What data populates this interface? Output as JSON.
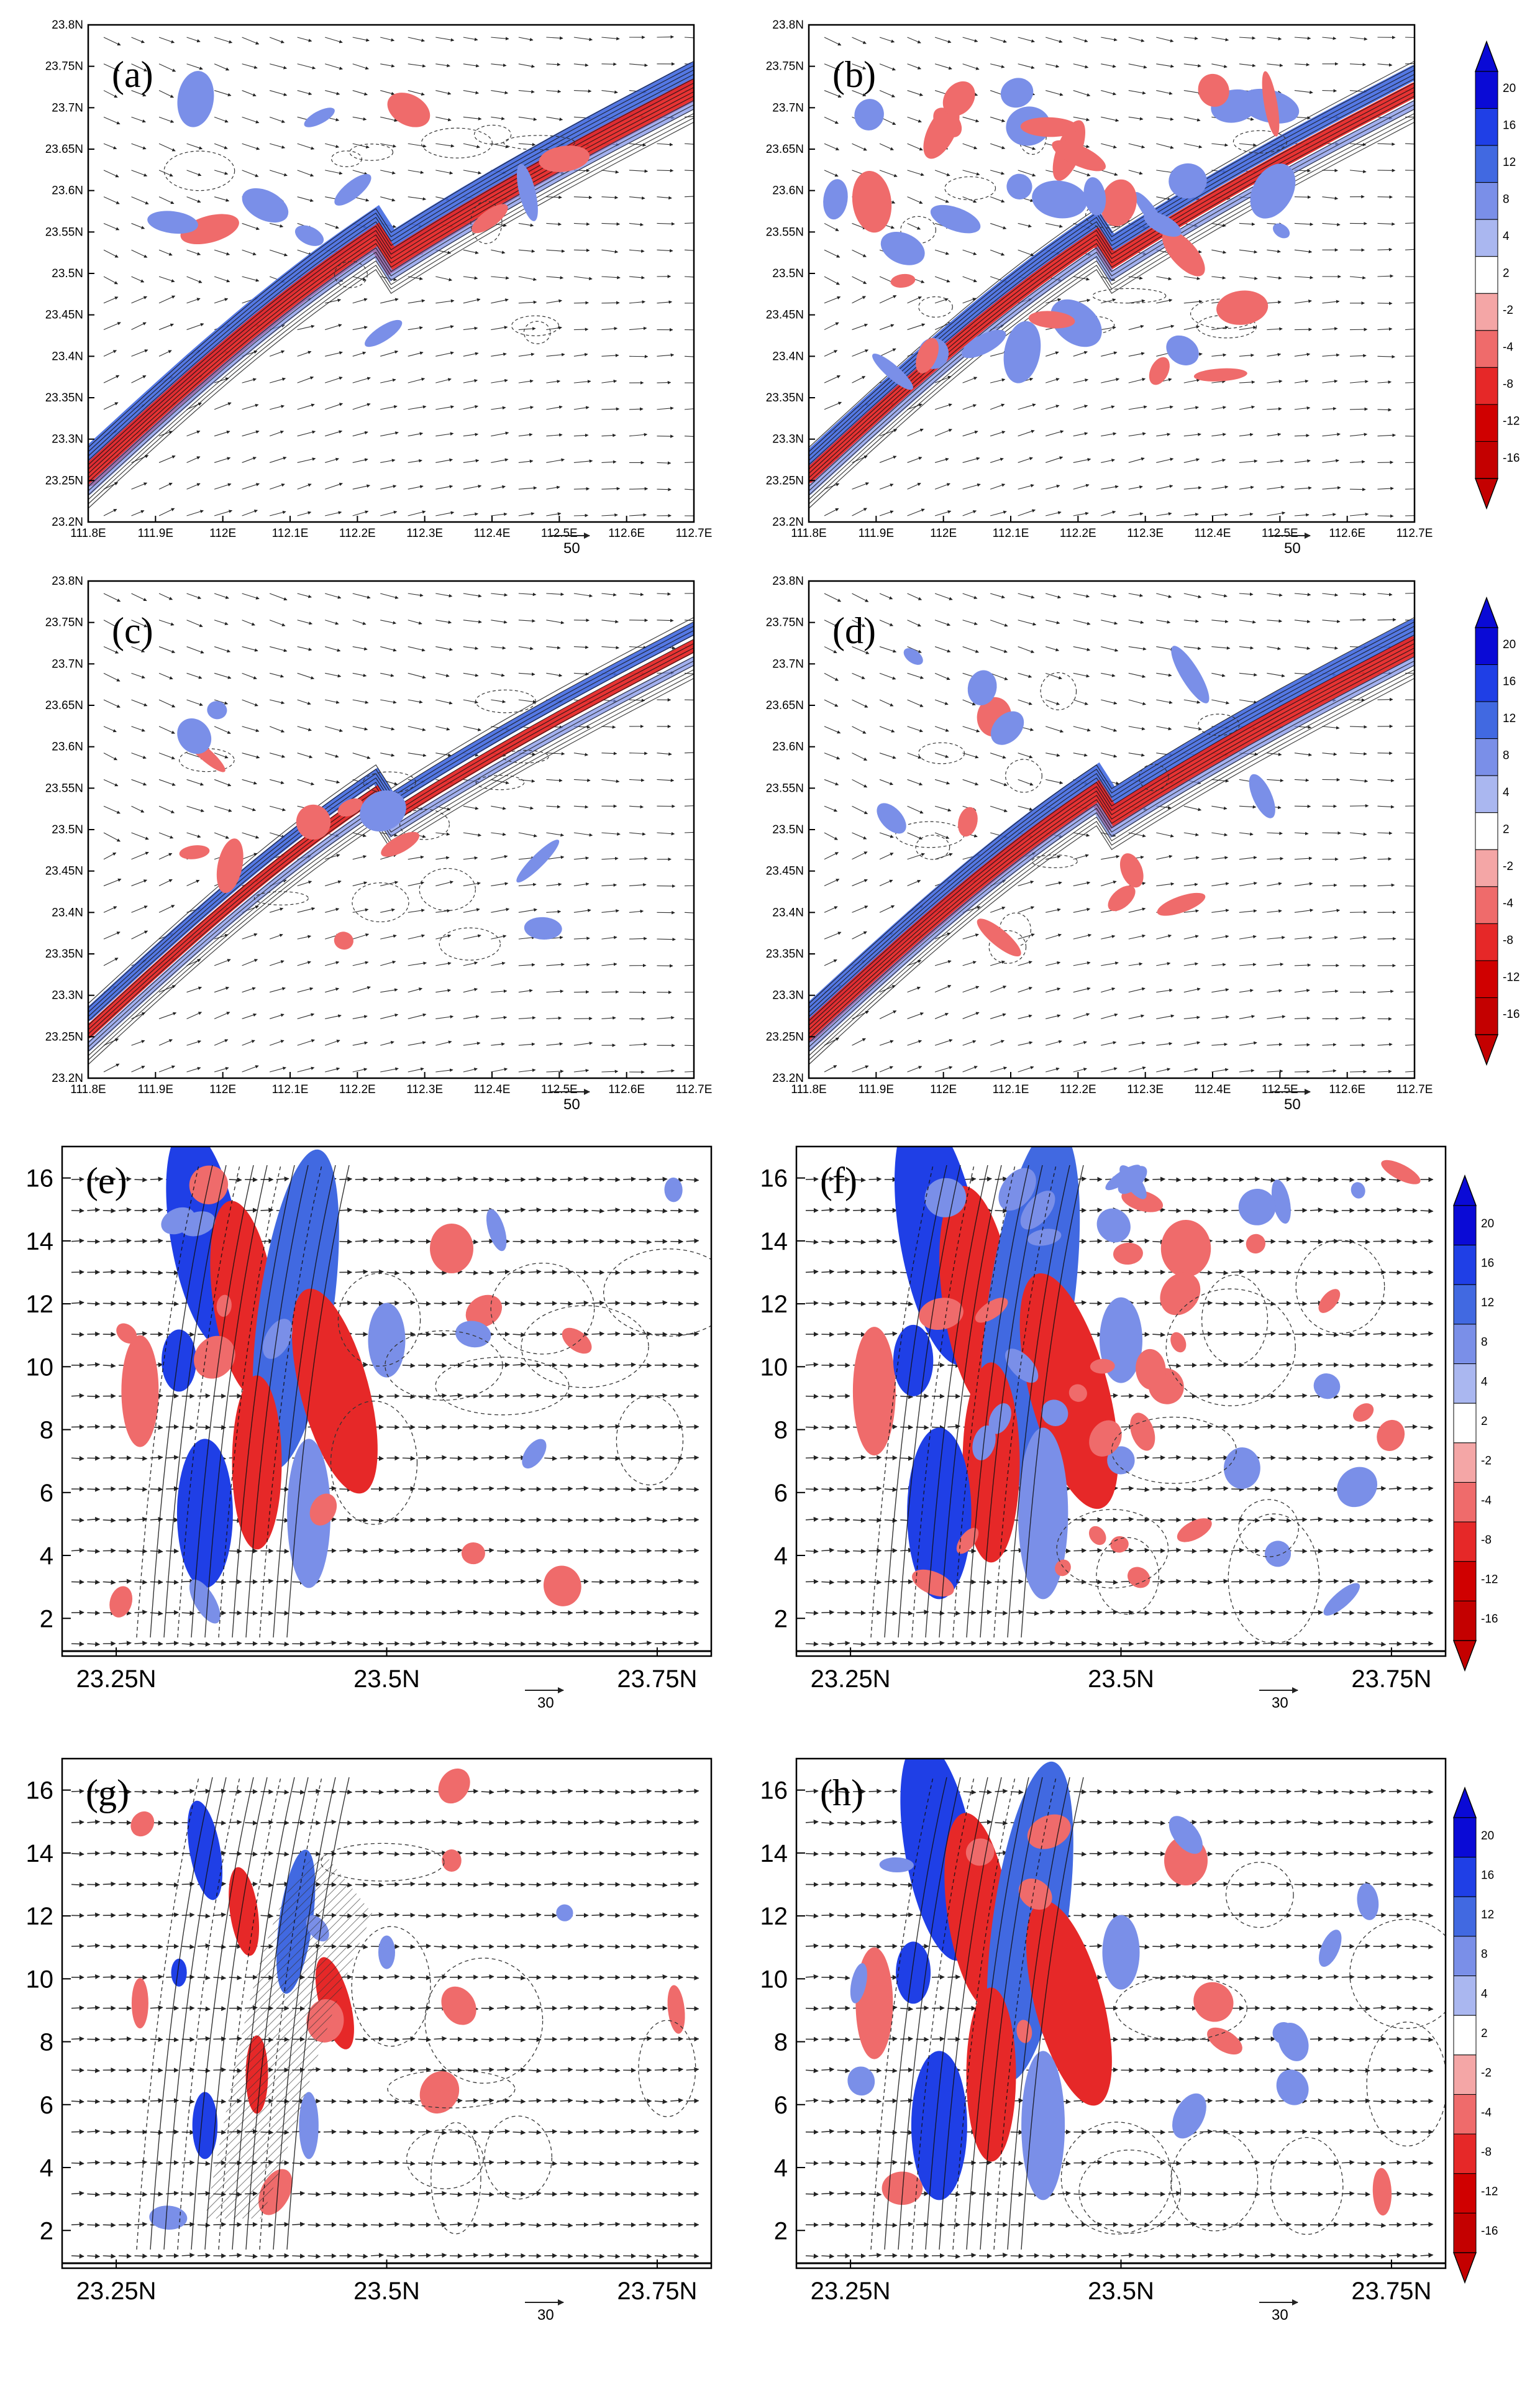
{
  "chart_data": [
    {
      "type": "heatmap",
      "panel": "(a)",
      "x_tick_labels": [
        "111.8E",
        "111.9E",
        "112E",
        "112.1E",
        "112.2E",
        "112.3E",
        "112.4E",
        "112.5E",
        "112.6E",
        "112.7E"
      ],
      "y_tick_labels": [
        "23.2N",
        "23.25N",
        "23.3N",
        "23.35N",
        "23.4N",
        "23.45N",
        "23.5N",
        "23.55N",
        "23.6N",
        "23.65N",
        "23.7N",
        "23.75N",
        "23.8N"
      ],
      "xlim": [
        111.8,
        112.7
      ],
      "ylim": [
        23.2,
        23.8
      ],
      "vector_reference": "50",
      "colorbar_levels": [
        20,
        16,
        12,
        8,
        4,
        2,
        -2,
        -4,
        -8,
        -12,
        -16
      ]
    },
    {
      "type": "heatmap",
      "panel": "(b)",
      "x_tick_labels": [
        "111.8E",
        "111.9E",
        "112E",
        "112.1E",
        "112.2E",
        "112.3E",
        "112.4E",
        "112.5E",
        "112.6E",
        "112.7E"
      ],
      "y_tick_labels": [
        "23.2N",
        "23.25N",
        "23.3N",
        "23.35N",
        "23.4N",
        "23.45N",
        "23.5N",
        "23.55N",
        "23.6N",
        "23.65N",
        "23.7N",
        "23.75N",
        "23.8N"
      ],
      "xlim": [
        111.8,
        112.7
      ],
      "ylim": [
        23.2,
        23.8
      ],
      "vector_reference": "50",
      "colorbar_levels": [
        20,
        16,
        12,
        8,
        4,
        2,
        -2,
        -4,
        -8,
        -12,
        -16
      ]
    },
    {
      "type": "heatmap",
      "panel": "(c)",
      "x_tick_labels": [
        "111.8E",
        "111.9E",
        "112E",
        "112.1E",
        "112.2E",
        "112.3E",
        "112.4E",
        "112.5E",
        "112.6E",
        "112.7E"
      ],
      "y_tick_labels": [
        "23.2N",
        "23.25N",
        "23.3N",
        "23.35N",
        "23.4N",
        "23.45N",
        "23.5N",
        "23.55N",
        "23.6N",
        "23.65N",
        "23.7N",
        "23.75N",
        "23.8N"
      ],
      "xlim": [
        111.8,
        112.7
      ],
      "ylim": [
        23.2,
        23.8
      ],
      "vector_reference": "50"
    },
    {
      "type": "heatmap",
      "panel": "(d)",
      "x_tick_labels": [
        "111.8E",
        "111.9E",
        "112E",
        "112.1E",
        "112.2E",
        "112.3E",
        "112.4E",
        "112.5E",
        "112.6E",
        "112.7E"
      ],
      "y_tick_labels": [
        "23.2N",
        "23.25N",
        "23.3N",
        "23.35N",
        "23.4N",
        "23.45N",
        "23.5N",
        "23.55N",
        "23.6N",
        "23.65N",
        "23.7N",
        "23.75N",
        "23.8N"
      ],
      "xlim": [
        111.8,
        112.7
      ],
      "ylim": [
        23.2,
        23.8
      ],
      "vector_reference": "50",
      "colorbar_levels": [
        20,
        16,
        12,
        8,
        4,
        2,
        -2,
        -4,
        -8,
        -12,
        -16
      ]
    },
    {
      "type": "heatmap",
      "panel": "(e)",
      "x_tick_labels": [
        "23.25N",
        "23.5N",
        "23.75N"
      ],
      "y_tick_labels": [
        "2",
        "4",
        "6",
        "8",
        "10",
        "12",
        "14",
        "16"
      ],
      "xlim": [
        23.2,
        23.8
      ],
      "ylim": [
        0.8,
        17
      ],
      "vector_reference": "30"
    },
    {
      "type": "heatmap",
      "panel": "(f)",
      "x_tick_labels": [
        "23.25N",
        "23.5N",
        "23.75N"
      ],
      "y_tick_labels": [
        "2",
        "4",
        "6",
        "8",
        "10",
        "12",
        "14",
        "16"
      ],
      "xlim": [
        23.2,
        23.8
      ],
      "ylim": [
        0.8,
        17
      ],
      "vector_reference": "30",
      "colorbar_levels": [
        20,
        16,
        12,
        8,
        4,
        2,
        -2,
        -4,
        -8,
        -12,
        -16
      ]
    },
    {
      "type": "heatmap",
      "panel": "(g)",
      "x_tick_labels": [
        "23.25N",
        "23.5N",
        "23.75N"
      ],
      "y_tick_labels": [
        "2",
        "4",
        "6",
        "8",
        "10",
        "12",
        "14",
        "16"
      ],
      "xlim": [
        23.2,
        23.8
      ],
      "ylim": [
        0.8,
        17
      ],
      "vector_reference": "30"
    },
    {
      "type": "heatmap",
      "panel": "(h)",
      "x_tick_labels": [
        "23.25N",
        "23.5N",
        "23.75N"
      ],
      "y_tick_labels": [
        "2",
        "4",
        "6",
        "8",
        "10",
        "12",
        "14",
        "16"
      ],
      "xlim": [
        23.2,
        23.8
      ],
      "ylim": [
        0.8,
        17
      ],
      "vector_reference": "30",
      "colorbar_levels": [
        20,
        16,
        12,
        8,
        4,
        2,
        -2,
        -4,
        -8,
        -12,
        -16
      ]
    }
  ],
  "colors": {
    "blue_levels": [
      "#0a0ad6",
      "#1f3fe6",
      "#4169e1",
      "#7a8fe8",
      "#aab7f0"
    ],
    "red_levels": [
      "#f4a6a6",
      "#ef6b6b",
      "#e62828",
      "#d00000",
      "#c40000"
    ],
    "frame": "#000000"
  }
}
